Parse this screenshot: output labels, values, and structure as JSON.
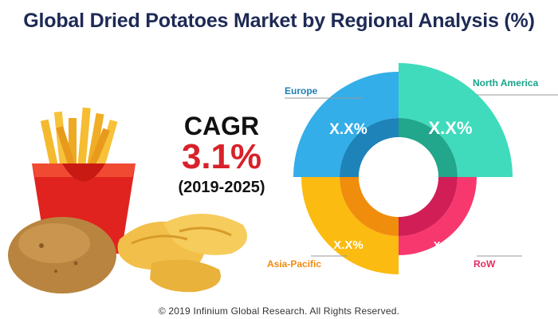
{
  "title": "Global Dried Potatoes Market by Regional Analysis (%)",
  "cagr": {
    "label": "CAGR",
    "value": "3.1%",
    "period": "(2019-2025)"
  },
  "footer": "© 2019 Infinium Global Research. All Rights Reserved.",
  "chart_data": {
    "type": "pie",
    "title": "Global Dried Potatoes Market by Regional Analysis (%)",
    "categories": [
      "North America",
      "Europe",
      "Asia-Pacific",
      "RoW"
    ],
    "slice_labels": [
      "X.X%",
      "X.X%",
      "X.X%",
      "X.X%"
    ],
    "legend": "callout labels",
    "colors": {
      "North America": "#3fdbbc",
      "Europe": "#33aee9",
      "Asia-Pacific": "#fcbb10",
      "RoW": "#f7386f"
    },
    "inner_colors": {
      "North America": "#22a68c",
      "Europe": "#1e83b9",
      "Asia-Pacific": "#f08d0c",
      "RoW": "#d11e57"
    },
    "label_colors": {
      "North America": "#17a48b",
      "Europe": "#1f7fb5",
      "Asia-Pacific": "#f28b12",
      "RoW": "#e22d63"
    }
  }
}
